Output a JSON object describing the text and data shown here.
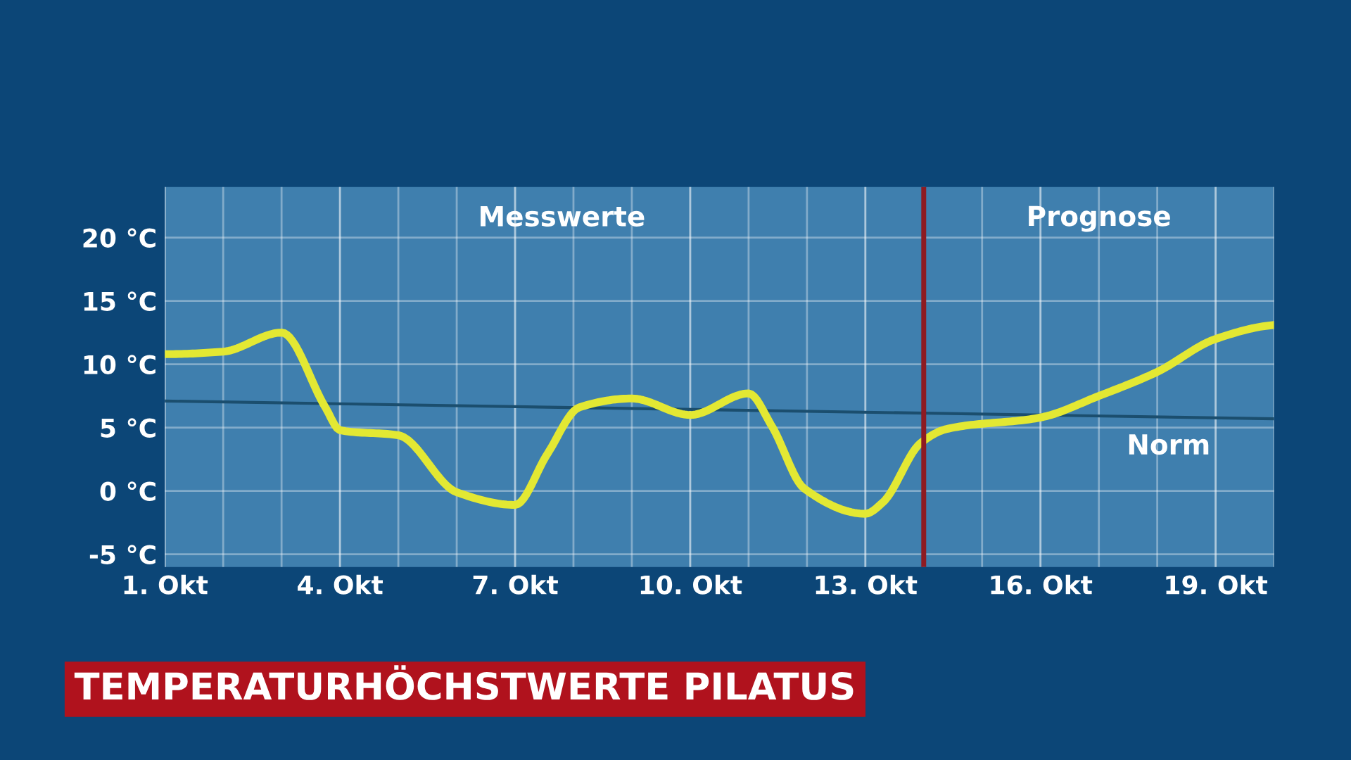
{
  "chart_data": {
    "type": "line",
    "title": "TEMPERATURHÖCHSTWERTE PILATUS",
    "annotations": [
      "Messwerte",
      "Prognose"
    ],
    "xlim": [
      1,
      20
    ],
    "ylim": [
      -6,
      24
    ],
    "xticks": [
      {
        "value": 1,
        "label": "1. Okt"
      },
      {
        "value": 4,
        "label": "4. Okt"
      },
      {
        "value": 7,
        "label": "7. Okt"
      },
      {
        "value": 10,
        "label": "10. Okt"
      },
      {
        "value": 13,
        "label": "13. Okt"
      },
      {
        "value": 16,
        "label": "16. Okt"
      },
      {
        "value": 19,
        "label": "19. Okt"
      }
    ],
    "yticks": [
      {
        "value": -5,
        "label": "-5 °C"
      },
      {
        "value": 0,
        "label": "0 °C"
      },
      {
        "value": 5,
        "label": "5 °C"
      },
      {
        "value": 10,
        "label": "10 °C"
      },
      {
        "value": 15,
        "label": "15 °C"
      },
      {
        "value": 20,
        "label": "20 °C"
      }
    ],
    "grid": true,
    "series": [
      {
        "color": "#e3e833",
        "x": [
          1,
          2,
          3,
          3.75,
          4,
          5,
          6,
          7,
          7.55,
          8.1,
          9,
          10,
          11,
          11.4,
          11.95,
          13,
          13.3,
          13.95,
          14.4,
          16,
          17,
          18,
          19,
          20
        ],
        "values": [
          10.8,
          11.0,
          12.5,
          6.6,
          4.8,
          4.4,
          -0.1,
          -1.1,
          2.9,
          6.6,
          7.3,
          6.0,
          7.7,
          5.1,
          0.2,
          -1.8,
          -0.9,
          3.8,
          4.9,
          5.8,
          7.5,
          9.4,
          12.0,
          13.1
        ]
      },
      {
        "name": "Norm",
        "color": "#1b4e6e",
        "x": [
          1,
          20
        ],
        "values": [
          7.1,
          5.7
        ]
      }
    ],
    "ref_lines": [
      {
        "axis": "x",
        "value": 14,
        "color": "#8e1b22"
      }
    ]
  }
}
